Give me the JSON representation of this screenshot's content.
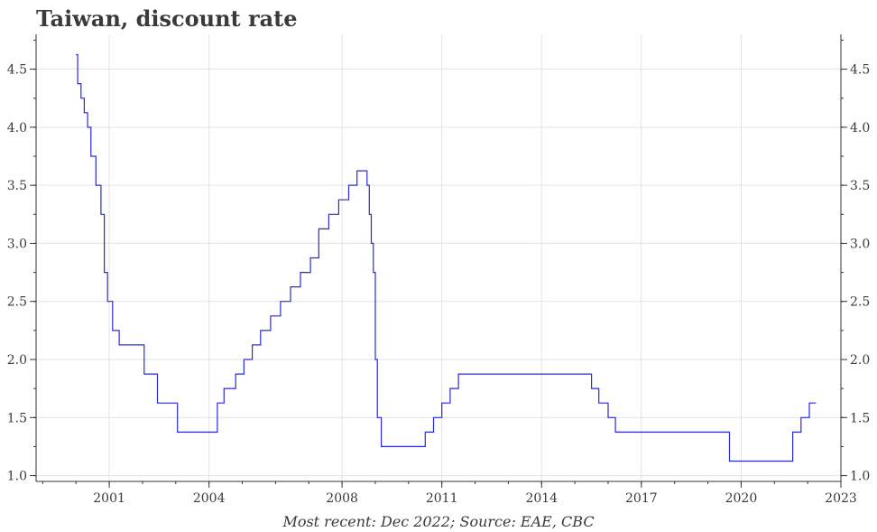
{
  "chart_data": {
    "type": "line",
    "title": "Taiwan, discount rate",
    "caption": "Most recent: Dec 2022; Source: EAE, CBC",
    "xlabel": "",
    "ylabel": "",
    "xlim": [
      1998.8,
      2023.0
    ],
    "ylim": [
      0.95,
      4.8
    ],
    "x_ticks": [
      2001,
      2004,
      2008,
      2011,
      2014,
      2017,
      2020,
      2023
    ],
    "y_ticks": [
      1.0,
      1.5,
      2.0,
      2.5,
      3.0,
      3.5,
      4.0,
      4.5
    ],
    "y_tick_labels": [
      "1.0",
      "1.5",
      "2.0",
      "2.5",
      "3.0",
      "3.5",
      "4.0",
      "4.5"
    ],
    "grid": true,
    "step": true,
    "series": [
      {
        "color": "#2b2bd6",
        "points": [
          [
            2000.0,
            4.625
          ],
          [
            2000.05,
            4.375
          ],
          [
            2000.15,
            4.25
          ],
          [
            2000.25,
            4.125
          ],
          [
            2000.35,
            4.0
          ],
          [
            2000.45,
            3.75
          ],
          [
            2000.6,
            3.5
          ],
          [
            2000.75,
            3.25
          ],
          [
            2000.85,
            2.75
          ],
          [
            2000.95,
            2.5
          ],
          [
            2001.1,
            2.25
          ],
          [
            2001.3,
            2.125
          ],
          [
            2002.05,
            1.875
          ],
          [
            2002.45,
            1.625
          ],
          [
            2003.05,
            1.375
          ],
          [
            2004.25,
            1.625
          ],
          [
            2004.45,
            1.75
          ],
          [
            2004.8,
            1.875
          ],
          [
            2005.05,
            2.0
          ],
          [
            2005.3,
            2.125
          ],
          [
            2005.55,
            2.25
          ],
          [
            2005.85,
            2.375
          ],
          [
            2006.15,
            2.5
          ],
          [
            2006.45,
            2.625
          ],
          [
            2006.75,
            2.75
          ],
          [
            2007.05,
            2.875
          ],
          [
            2007.3,
            3.125
          ],
          [
            2007.6,
            3.25
          ],
          [
            2007.9,
            3.375
          ],
          [
            2008.2,
            3.5
          ],
          [
            2008.45,
            3.625
          ],
          [
            2008.75,
            3.5
          ],
          [
            2008.82,
            3.25
          ],
          [
            2008.88,
            3.0
          ],
          [
            2008.94,
            2.75
          ],
          [
            2009.0,
            2.0
          ],
          [
            2009.06,
            1.5
          ],
          [
            2009.18,
            1.25
          ],
          [
            2010.5,
            1.375
          ],
          [
            2010.75,
            1.5
          ],
          [
            2011.0,
            1.625
          ],
          [
            2011.25,
            1.75
          ],
          [
            2011.5,
            1.875
          ],
          [
            2015.5,
            1.75
          ],
          [
            2015.72,
            1.625
          ],
          [
            2016.0,
            1.5
          ],
          [
            2016.22,
            1.375
          ],
          [
            2019.65,
            1.125
          ],
          [
            2021.55,
            1.375
          ],
          [
            2021.8,
            1.5
          ],
          [
            2022.05,
            1.625
          ],
          [
            2022.25,
            1.625
          ]
        ]
      }
    ]
  }
}
